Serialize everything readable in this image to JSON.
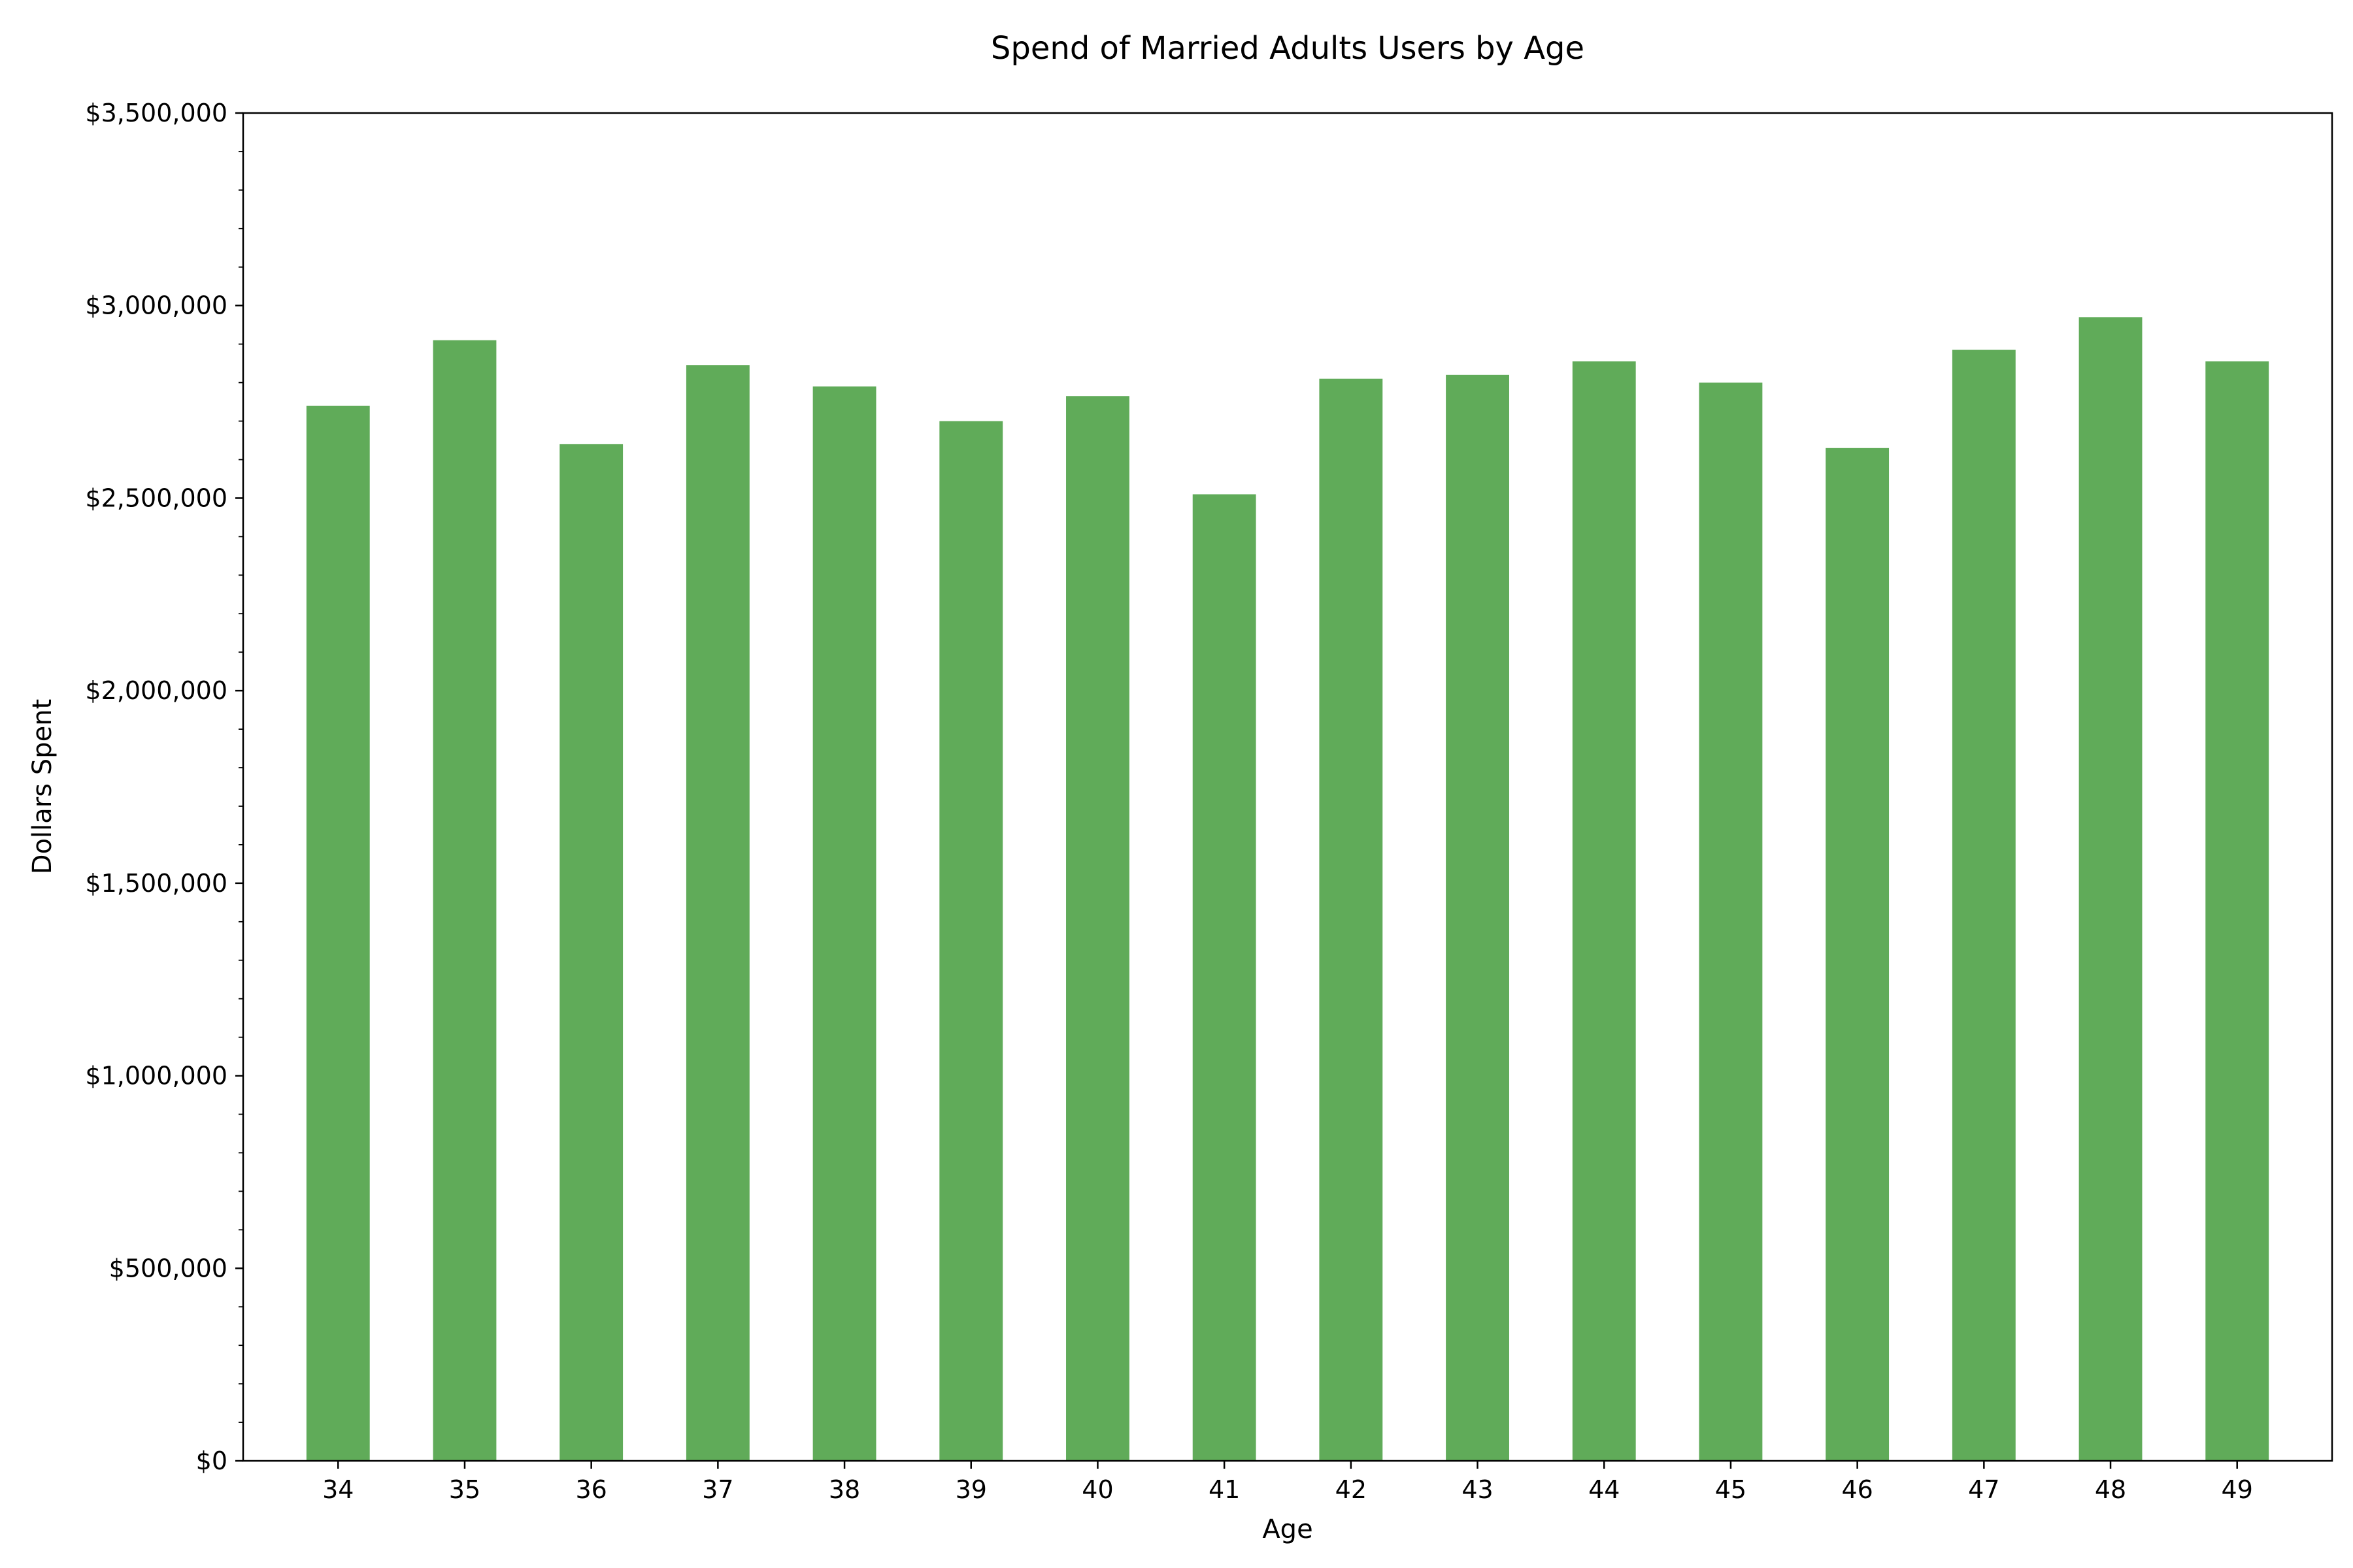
{
  "chart_data": {
    "type": "bar",
    "title": "Spend of Married Adults Users by Age",
    "xlabel": "Age",
    "ylabel": "Dollars Spent",
    "categories": [
      "34",
      "35",
      "36",
      "37",
      "38",
      "39",
      "40",
      "41",
      "42",
      "43",
      "44",
      "45",
      "46",
      "47",
      "48",
      "49"
    ],
    "values": [
      2740000,
      2910000,
      2640000,
      2845000,
      2790000,
      2700000,
      2765000,
      2510000,
      2810000,
      2820000,
      2855000,
      2800000,
      2630000,
      2885000,
      2970000,
      2855000
    ],
    "ylim": [
      0,
      3500000
    ],
    "yticks": [
      0,
      500000,
      1000000,
      1500000,
      2000000,
      2500000,
      3000000,
      3500000
    ],
    "ytick_labels": [
      "$0",
      "$500,000",
      "$1,000,000",
      "$1,500,000",
      "$2,000,000",
      "$2,500,000",
      "$3,000,000",
      "$3,500,000"
    ],
    "bar_color": "#60ab59",
    "grid": false,
    "legend": false
  }
}
